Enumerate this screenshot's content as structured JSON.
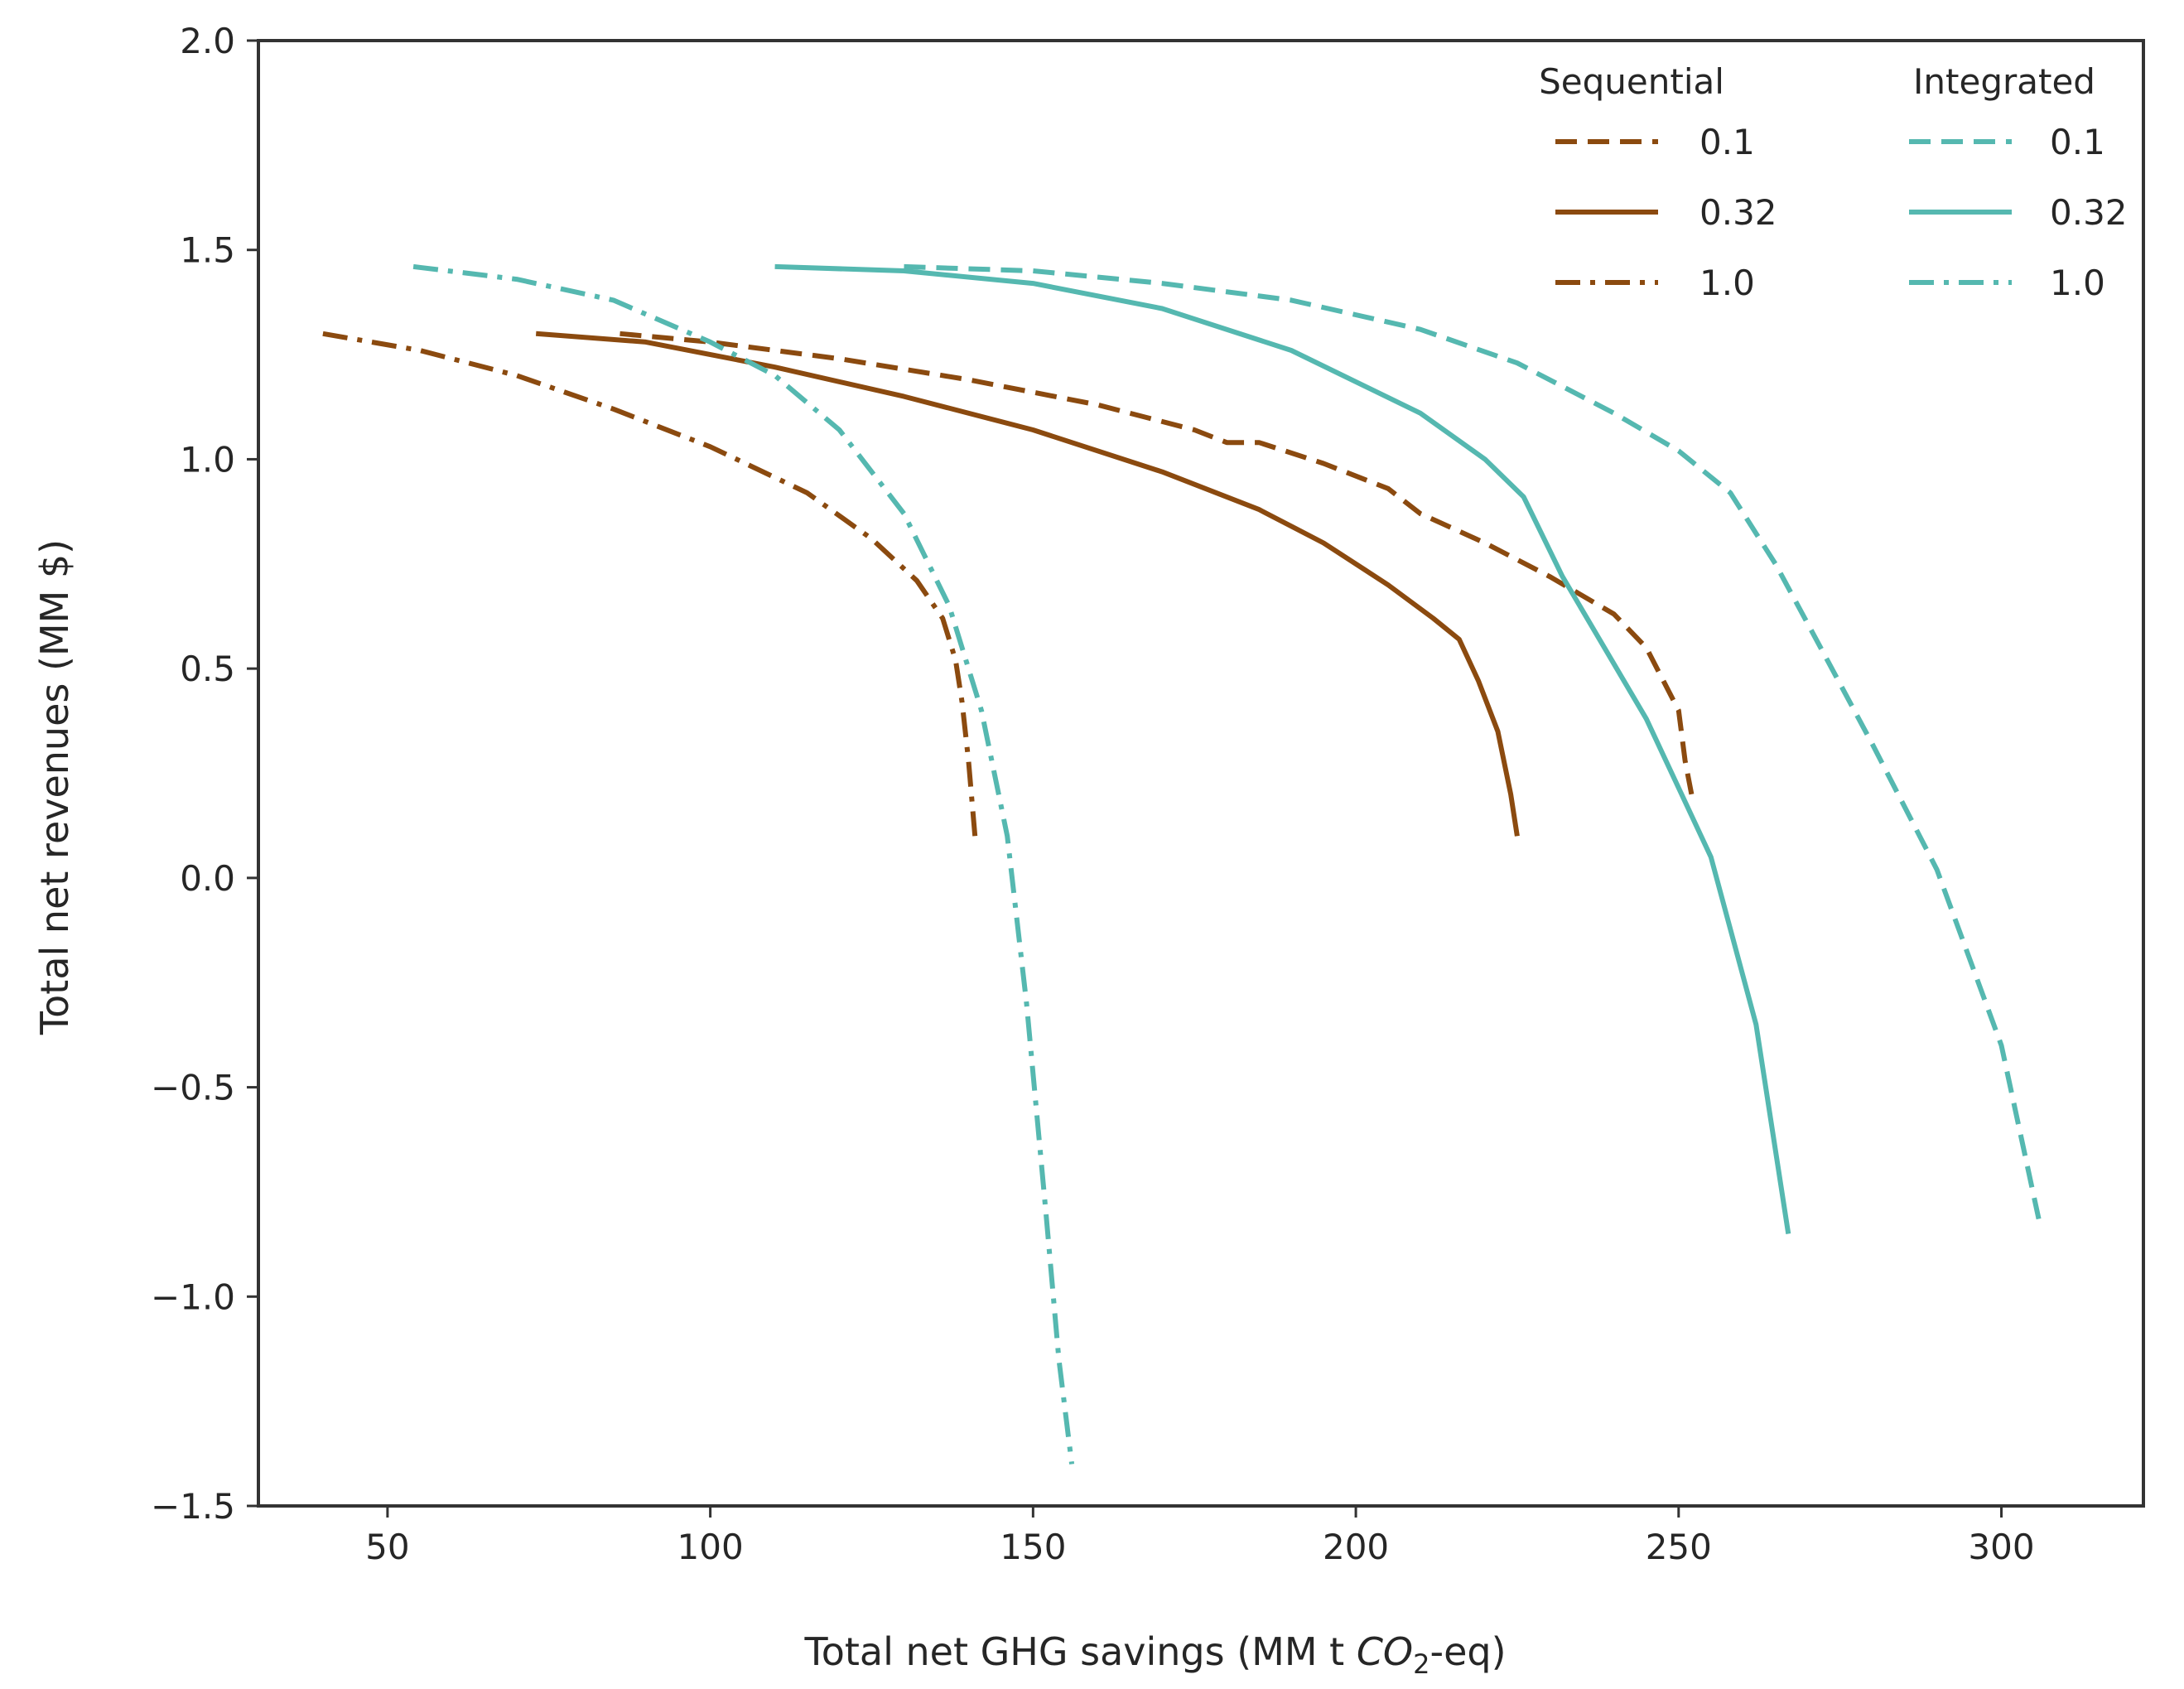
{
  "chart_data": {
    "type": "line",
    "title": "",
    "xlabel": "Total net GHG savings (MM t ",
    "xlabel_sub_base": "CO",
    "xlabel_sub": "2",
    "xlabel_suffix": "-eq)",
    "ylabel": "Total net revenues (MM $)",
    "xlim": [
      30,
      322
    ],
    "ylim": [
      -1.5,
      2.0
    ],
    "xticks": [
      50,
      100,
      150,
      200,
      250,
      300
    ],
    "yticks": [
      -1.5,
      -1.0,
      -0.5,
      0.0,
      0.5,
      1.0,
      1.5,
      2.0
    ],
    "xtick_labels": [
      "50",
      "100",
      "150",
      "200",
      "250",
      "300"
    ],
    "ytick_labels": [
      "−1.5",
      "−1.0",
      "−0.5",
      "0.0",
      "0.5",
      "1.0",
      "1.5",
      "2.0"
    ],
    "grid": false,
    "legend": {
      "placement": "top-right",
      "groups": [
        {
          "title": "Sequential",
          "color": "#8b4a0f",
          "entries": [
            "0.1",
            "0.32",
            "1.0"
          ]
        },
        {
          "title": "Integrated",
          "color": "#55b8b0",
          "entries": [
            "0.1",
            "0.32",
            "1.0"
          ]
        }
      ]
    },
    "series": [
      {
        "name": "Sequential 0.1",
        "group": "Sequential",
        "param": "0.1",
        "style": "dashed",
        "color": "#8b4a0f",
        "x": [
          86,
          100,
          120,
          140,
          160,
          175,
          180,
          185,
          195,
          205,
          210,
          220,
          230,
          240,
          245,
          250,
          251,
          252
        ],
        "y": [
          1.3,
          1.28,
          1.24,
          1.19,
          1.13,
          1.07,
          1.04,
          1.04,
          0.99,
          0.93,
          0.87,
          0.8,
          0.72,
          0.63,
          0.55,
          0.4,
          0.28,
          0.2
        ]
      },
      {
        "name": "Sequential 0.32",
        "group": "Sequential",
        "param": "0.32",
        "style": "solid",
        "color": "#8b4a0f",
        "x": [
          73,
          90,
          110,
          130,
          150,
          170,
          185,
          195,
          205,
          212,
          216,
          219,
          222,
          224,
          225
        ],
        "y": [
          1.3,
          1.28,
          1.22,
          1.15,
          1.07,
          0.97,
          0.88,
          0.8,
          0.7,
          0.62,
          0.57,
          0.47,
          0.35,
          0.2,
          0.1
        ]
      },
      {
        "name": "Sequential 1.0",
        "group": "Sequential",
        "param": "1.0",
        "style": "dashdot",
        "color": "#8b4a0f",
        "x": [
          40,
          55,
          70,
          85,
          100,
          115,
          125,
          132,
          136,
          138,
          139,
          140,
          141
        ],
        "y": [
          1.3,
          1.26,
          1.2,
          1.12,
          1.03,
          0.92,
          0.81,
          0.71,
          0.62,
          0.52,
          0.42,
          0.28,
          0.1
        ]
      },
      {
        "name": "Integrated 0.1",
        "group": "Integrated",
        "param": "0.1",
        "style": "dashed",
        "color": "#55b8b0",
        "x": [
          130,
          150,
          170,
          190,
          210,
          225,
          240,
          250,
          258,
          265,
          272,
          280,
          290,
          300,
          306
        ],
        "y": [
          1.46,
          1.45,
          1.42,
          1.38,
          1.31,
          1.23,
          1.11,
          1.02,
          0.92,
          0.75,
          0.55,
          0.32,
          0.02,
          -0.4,
          -0.83
        ]
      },
      {
        "name": "Integrated 0.32",
        "group": "Integrated",
        "param": "0.32",
        "style": "solid",
        "color": "#55b8b0",
        "x": [
          110,
          130,
          150,
          170,
          190,
          210,
          220,
          226,
          232,
          245,
          255,
          262,
          267
        ],
        "y": [
          1.46,
          1.45,
          1.42,
          1.36,
          1.26,
          1.11,
          1.0,
          0.91,
          0.72,
          0.38,
          0.05,
          -0.35,
          -0.85
        ]
      },
      {
        "name": "Integrated 1.0",
        "group": "Integrated",
        "param": "1.0",
        "style": "dashdot",
        "color": "#55b8b0",
        "x": [
          54,
          70,
          85,
          100,
          110,
          120,
          130,
          137,
          142,
          146,
          149,
          152,
          154,
          156
        ],
        "y": [
          1.46,
          1.43,
          1.38,
          1.28,
          1.2,
          1.07,
          0.87,
          0.65,
          0.4,
          0.1,
          -0.3,
          -0.8,
          -1.15,
          -1.4
        ]
      }
    ]
  }
}
